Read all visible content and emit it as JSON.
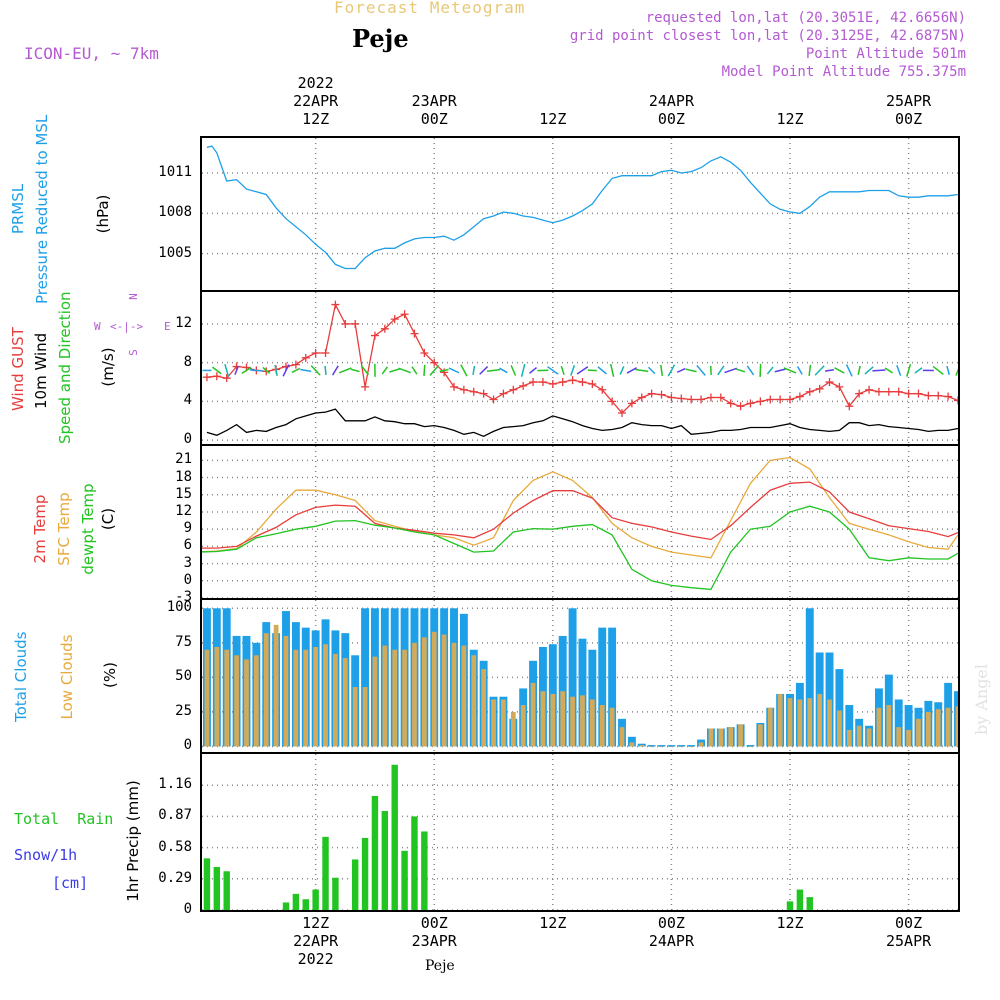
{
  "header": {
    "title": "Forecast Meteogram",
    "location": "Peje",
    "model": "ICON-EU, ~ 7km",
    "requested": "requested lon,lat (20.3051E, 42.6656N)",
    "grid_point": "grid point closest lon,lat (20.3125E, 42.6875N)",
    "point_altitude": "Point Altitude 501m",
    "model_altitude": "Model Point Altitude 755.375m",
    "footer_location": "Peje",
    "watermark": "by Angel"
  },
  "colors": {
    "blue": "#1ea0e8",
    "red": "#e83c3c",
    "green": "#22c422",
    "orange": "#e8aa3c",
    "purple": "#b45ad2",
    "black": "#000000"
  },
  "time_axis": {
    "top_labels": [
      {
        "lines": [
          "2022",
          "22APR",
          "12Z"
        ],
        "hour": 12
      },
      {
        "lines": [
          "23APR",
          "00Z"
        ],
        "hour": 24
      },
      {
        "lines": [
          "12Z"
        ],
        "hour": 36
      },
      {
        "lines": [
          "24APR",
          "00Z"
        ],
        "hour": 48
      },
      {
        "lines": [
          "12Z"
        ],
        "hour": 60
      },
      {
        "lines": [
          "25APR",
          "00Z"
        ],
        "hour": 72
      }
    ],
    "bottom_labels": [
      {
        "lines": [
          "12Z",
          "22APR",
          "2022"
        ],
        "hour": 12
      },
      {
        "lines": [
          "00Z",
          "23APR"
        ],
        "hour": 24
      },
      {
        "lines": [
          "12Z"
        ],
        "hour": 36
      },
      {
        "lines": [
          "00Z",
          "24APR"
        ],
        "hour": 48
      },
      {
        "lines": [
          "12Z"
        ],
        "hour": 60
      },
      {
        "lines": [
          "00Z",
          "25APR"
        ],
        "hour": 72
      }
    ],
    "start_hour": 0.5,
    "end_hour": 77
  },
  "chart_data": [
    {
      "type": "line",
      "id": "pressure",
      "title": "PRMSL Pressure Reduced to MSL",
      "ylabel": "(hPa)",
      "labels": [
        "PRMSL",
        "Pressure Reduced to MSL"
      ],
      "unit": "(hPa)",
      "yticks": [
        1005,
        1008,
        1011
      ],
      "ylim": [
        1002.3,
        1013.6
      ],
      "x": [
        1,
        1.5,
        2,
        3,
        4,
        5,
        6,
        7,
        8,
        9,
        10,
        11,
        12,
        13,
        14,
        15,
        16,
        17,
        18,
        19,
        20,
        21,
        22,
        23,
        24,
        25,
        26,
        27,
        28,
        29,
        30,
        31,
        32,
        33,
        34,
        35,
        36,
        37,
        38,
        39,
        40,
        41,
        42,
        43,
        44,
        45,
        46,
        47,
        48,
        49,
        50,
        51,
        52,
        53,
        54,
        55,
        56,
        57,
        58,
        59,
        60,
        61,
        62,
        63,
        64,
        65,
        66,
        67,
        68,
        69,
        70,
        71,
        72,
        73,
        74,
        75,
        76,
        77
      ],
      "values": [
        1012.9,
        1013.0,
        1012.5,
        1010.4,
        1010.5,
        1009.8,
        1009.6,
        1009.4,
        1008.4,
        1007.6,
        1007.0,
        1006.4,
        1005.7,
        1005.1,
        1004.2,
        1003.9,
        1003.9,
        1004.7,
        1005.2,
        1005.4,
        1005.4,
        1005.8,
        1006.1,
        1006.2,
        1006.2,
        1006.3,
        1006.0,
        1006.4,
        1007.0,
        1007.6,
        1007.8,
        1008.1,
        1008.0,
        1007.8,
        1007.7,
        1007.5,
        1007.3,
        1007.5,
        1007.8,
        1008.2,
        1008.7,
        1009.7,
        1010.6,
        1010.8,
        1010.8,
        1010.8,
        1010.8,
        1011.1,
        1011.2,
        1011.0,
        1011.1,
        1011.4,
        1011.9,
        1012.2,
        1011.8,
        1011.2,
        1010.3,
        1009.5,
        1008.7,
        1008.3,
        1008.1,
        1008.0,
        1008.5,
        1009.2,
        1009.6,
        1009.6,
        1009.6,
        1009.6,
        1009.7,
        1009.7,
        1009.7,
        1009.3,
        1009.2,
        1009.2,
        1009.3,
        1009.3,
        1009.3,
        1009.4
      ]
    },
    {
      "type": "line",
      "id": "wind",
      "labels_red": "Wind GUST",
      "labels_black": "10m Wind",
      "labels_green": "Speed and Direction",
      "unit": "(m/s)",
      "compass": [
        "N",
        "W",
        "<-|->",
        "E",
        "S"
      ],
      "yticks": [
        0,
        4,
        8,
        12
      ],
      "ylim": [
        -0.4,
        15.3
      ],
      "x": [
        1,
        2,
        3,
        4,
        5,
        6,
        7,
        8,
        9,
        10,
        11,
        12,
        13,
        14,
        15,
        16,
        17,
        18,
        19,
        20,
        21,
        22,
        23,
        24,
        25,
        26,
        27,
        28,
        29,
        30,
        31,
        32,
        33,
        34,
        35,
        36,
        37,
        38,
        39,
        40,
        41,
        42,
        43,
        44,
        45,
        46,
        47,
        48,
        49,
        50,
        51,
        52,
        53,
        54,
        55,
        56,
        57,
        58,
        59,
        60,
        61,
        62,
        63,
        64,
        65,
        66,
        67,
        68,
        69,
        70,
        71,
        72,
        73,
        74,
        75,
        76,
        77
      ],
      "gust": [
        6.5,
        6.6,
        6.4,
        7.6,
        7.5,
        7.2,
        7.1,
        7.3,
        7.6,
        7.8,
        8.5,
        9.0,
        9.0,
        14.0,
        12.0,
        12.0,
        5.5,
        10.8,
        11.5,
        12.5,
        13.0,
        11.0,
        9.0,
        8.0,
        7.0,
        5.5,
        5.2,
        5.0,
        4.8,
        4.2,
        4.8,
        5.2,
        5.6,
        6.0,
        6.0,
        5.8,
        6.0,
        6.2,
        6.0,
        5.8,
        5.2,
        4.0,
        2.8,
        3.8,
        4.4,
        4.8,
        4.7,
        4.4,
        4.3,
        4.2,
        4.2,
        4.4,
        4.4,
        3.8,
        3.5,
        3.8,
        4.0,
        4.2,
        4.2,
        4.2,
        4.5,
        5.0,
        5.3,
        6.0,
        5.5,
        3.5,
        4.8,
        5.2,
        5.0,
        5.0,
        5.0,
        4.8,
        4.8,
        4.6,
        4.6,
        4.5,
        4.1
      ],
      "speed": [
        0.8,
        0.5,
        1.0,
        1.6,
        0.8,
        1.0,
        0.9,
        1.3,
        1.6,
        2.2,
        2.5,
        2.8,
        2.9,
        3.2,
        2.0,
        2.0,
        2.0,
        2.4,
        2.0,
        1.9,
        1.7,
        1.7,
        1.4,
        1.5,
        1.3,
        1.0,
        0.6,
        0.8,
        0.4,
        0.9,
        1.3,
        1.4,
        1.5,
        1.8,
        2.0,
        2.5,
        2.2,
        1.9,
        1.5,
        1.2,
        1.0,
        1.1,
        1.3,
        1.8,
        1.6,
        1.5,
        1.5,
        1.2,
        1.5,
        0.6,
        0.7,
        0.8,
        1.0,
        1.0,
        1.1,
        1.3,
        1.3,
        1.3,
        1.5,
        1.7,
        1.3,
        1.1,
        1.0,
        0.9,
        1.0,
        1.8,
        1.8,
        1.5,
        1.6,
        1.4,
        1.3,
        1.2,
        1.1,
        0.9,
        1.0,
        1.0,
        1.2
      ]
    },
    {
      "type": "line",
      "id": "temperature",
      "labels": [
        "2m Temp",
        "SFC Temp",
        "dewpt Temp"
      ],
      "unit": "(C)",
      "yticks": [
        -3,
        0,
        3,
        6,
        9,
        12,
        15,
        18,
        21
      ],
      "ylim": [
        -3,
        23.5
      ],
      "x": [
        0,
        2,
        4,
        6,
        8,
        10,
        12,
        14,
        16,
        18,
        20,
        22,
        24,
        26,
        28,
        30,
        32,
        34,
        36,
        38,
        40,
        42,
        44,
        46,
        48,
        50,
        52,
        54,
        56,
        58,
        60,
        62,
        64,
        66,
        68,
        70,
        72,
        74,
        76,
        77
      ],
      "temp2m": [
        5.7,
        5.7,
        6.0,
        7.8,
        9.3,
        11.5,
        12.8,
        13.2,
        13.0,
        10.0,
        9.2,
        8.8,
        8.3,
        8.0,
        7.5,
        9.0,
        11.8,
        14.0,
        15.7,
        15.7,
        14.4,
        11.0,
        10.0,
        9.4,
        8.5,
        7.8,
        7.2,
        9.6,
        12.8,
        15.8,
        17.0,
        17.2,
        15.5,
        12.0,
        10.8,
        9.6,
        9.1,
        8.6,
        7.7,
        8.4
      ],
      "sfc": [
        5.0,
        5.2,
        5.6,
        8.5,
        12.5,
        15.8,
        15.8,
        15.0,
        14.0,
        10.5,
        9.5,
        8.6,
        8.0,
        7.5,
        6.2,
        7.5,
        14.0,
        17.5,
        19.0,
        17.5,
        14.5,
        10.0,
        7.5,
        6.0,
        5.0,
        4.5,
        4.0,
        10.5,
        17.0,
        21.0,
        21.5,
        19.5,
        14.5,
        10.0,
        9.0,
        8.0,
        6.8,
        5.8,
        5.5,
        8.0
      ],
      "dew": [
        5.0,
        5.1,
        5.5,
        7.5,
        8.2,
        9.0,
        9.5,
        10.4,
        10.5,
        9.7,
        9.2,
        8.5,
        8.0,
        6.5,
        5.0,
        5.2,
        8.5,
        9.1,
        9.0,
        9.5,
        9.8,
        8.0,
        2.0,
        0.0,
        -0.8,
        -1.2,
        -1.5,
        5.0,
        9.0,
        9.5,
        12.0,
        13.0,
        12.0,
        9.0,
        4.0,
        3.5,
        4.0,
        3.8,
        3.8,
        4.8
      ]
    },
    {
      "type": "bar",
      "id": "clouds",
      "labels": [
        "Total Clouds",
        "Low Clouds"
      ],
      "unit": "(%)",
      "yticks": [
        0,
        25,
        50,
        75,
        100
      ],
      "ylim": [
        0,
        100
      ],
      "x": [
        1,
        2,
        3,
        4,
        5,
        6,
        7,
        8,
        9,
        10,
        11,
        12,
        13,
        14,
        15,
        16,
        17,
        18,
        19,
        20,
        21,
        22,
        23,
        24,
        25,
        26,
        27,
        28,
        29,
        30,
        31,
        32,
        33,
        34,
        35,
        36,
        37,
        38,
        39,
        40,
        41,
        42,
        43,
        44,
        45,
        46,
        47,
        48,
        49,
        50,
        51,
        52,
        53,
        54,
        55,
        56,
        57,
        58,
        59,
        60,
        61,
        62,
        63,
        64,
        65,
        66,
        67,
        68,
        69,
        70,
        71,
        72,
        73,
        74,
        75,
        76,
        77
      ],
      "total": [
        100,
        100,
        100,
        80,
        80,
        75,
        90,
        82,
        98,
        90,
        86,
        84,
        92,
        84,
        82,
        66,
        100,
        100,
        100,
        100,
        100,
        100,
        100,
        100,
        100,
        100,
        96,
        70,
        62,
        36,
        36,
        20,
        42,
        62,
        72,
        74,
        80,
        100,
        78,
        70,
        86,
        86,
        20,
        7,
        2,
        1,
        1,
        1,
        1,
        1,
        5,
        13,
        13,
        14,
        16,
        1,
        17,
        28,
        38,
        38,
        46,
        100,
        68,
        68,
        56,
        30,
        20,
        15,
        42,
        52,
        34,
        30,
        28,
        33,
        32,
        46,
        40
      ],
      "low": [
        70,
        72,
        70,
        66,
        63,
        66,
        82,
        88,
        80,
        70,
        70,
        72,
        74,
        67,
        64,
        43,
        43,
        65,
        73,
        70,
        70,
        75,
        79,
        83,
        81,
        75,
        73,
        66,
        56,
        34,
        34,
        25,
        30,
        46,
        40,
        38,
        40,
        36,
        37,
        34,
        30,
        28,
        14,
        3,
        1,
        0,
        0,
        0,
        0,
        0,
        3,
        13,
        13,
        14,
        16,
        0,
        16,
        28,
        38,
        35,
        34,
        35,
        38,
        34,
        26,
        12,
        15,
        13,
        28,
        30,
        14,
        12,
        20,
        25,
        27,
        28,
        29
      ]
    },
    {
      "type": "bar",
      "id": "precip",
      "labels": [
        "Total",
        "Rain"
      ],
      "snow_label": "Snow/1h",
      "snow_unit": "[cm]",
      "unit": "1hr Precip (mm)",
      "yticks": [
        "0",
        "0.29",
        "0.58",
        "0.87",
        "1.16"
      ],
      "ytick_values": [
        0,
        0.29,
        0.58,
        0.87,
        1.16
      ],
      "ylim": [
        0,
        1.45
      ],
      "x": [
        1,
        2,
        3,
        9,
        10,
        11,
        12,
        13,
        14,
        16,
        17,
        18,
        19,
        20,
        21,
        22,
        23,
        60,
        61,
        62
      ],
      "values": [
        0.48,
        0.4,
        0.36,
        0.07,
        0.15,
        0.1,
        0.19,
        0.68,
        0.3,
        0.47,
        0.67,
        1.06,
        0.92,
        1.35,
        0.55,
        0.87,
        0.73,
        0.08,
        0.19,
        0.12
      ]
    }
  ]
}
